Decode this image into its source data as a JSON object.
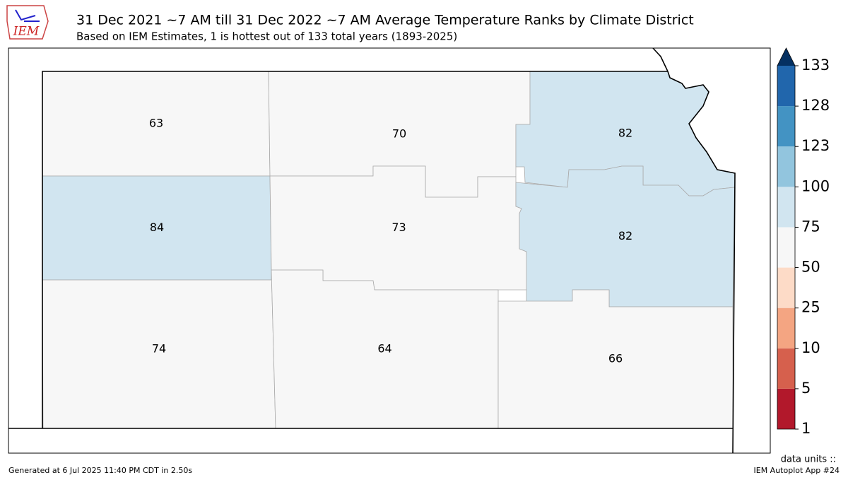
{
  "header": {
    "logo_text": "IEM",
    "title": "31 Dec 2021 ~7 AM till 31 Dec 2022 ~7 AM Average Temperature Ranks by Climate District",
    "subtitle": "Based on IEM Estimates, 1 is hottest out of 133 total years (1893-2025)"
  },
  "district_ranks": [
    63,
    70,
    82,
    84,
    73,
    82,
    74,
    64,
    66
  ],
  "colorbar": {
    "ticks": [
      1,
      5,
      10,
      25,
      50,
      75,
      100,
      123,
      128,
      133
    ],
    "colors": [
      "#b2182b",
      "#d6604d",
      "#f4a582",
      "#fddbc7",
      "#f7f7f7",
      "#d1e5f0",
      "#92c5de",
      "#4393c3",
      "#2166ac"
    ],
    "extend_color": "#053061"
  },
  "footer": {
    "generated": "Generated at 6 Jul 2025 11:40 PM CDT in 2.50s",
    "units": "data units ::",
    "app": "IEM Autoplot App #24"
  }
}
